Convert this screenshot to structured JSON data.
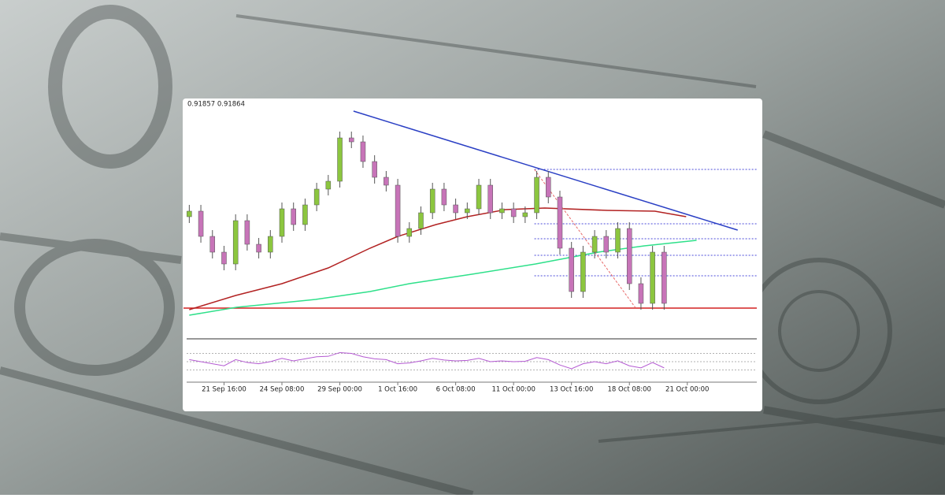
{
  "chart_data": {
    "type": "candlestick",
    "title": "0.91857 0.91864",
    "x": [
      0,
      1,
      2,
      3,
      4,
      5,
      6,
      7,
      8,
      9,
      10,
      11,
      12,
      13,
      14,
      15,
      16,
      17,
      18,
      19,
      20,
      21,
      22,
      23,
      24,
      25,
      26,
      27,
      28,
      29,
      30,
      31,
      32,
      33,
      34,
      35,
      36,
      37,
      38,
      39,
      40,
      41
    ],
    "open": [
      0.9244,
      0.92475,
      0.92315,
      0.92215,
      0.9214,
      0.92415,
      0.92265,
      0.92215,
      0.92315,
      0.9249,
      0.9239,
      0.92515,
      0.92615,
      0.92665,
      0.9294,
      0.92915,
      0.9279,
      0.9269,
      0.9264,
      0.92315,
      0.92365,
      0.92465,
      0.92615,
      0.92515,
      0.92465,
      0.9249,
      0.9264,
      0.92465,
      0.9249,
      0.9244,
      0.92465,
      0.9269,
      0.92565,
      0.9224,
      0.91965,
      0.92215,
      0.92315,
      0.92215,
      0.92365,
      0.92015,
      0.9189,
      0.92215
    ],
    "high": [
      0.92515,
      0.92515,
      0.92355,
      0.92255,
      0.92455,
      0.92455,
      0.92305,
      0.92355,
      0.9253,
      0.9253,
      0.92555,
      0.92655,
      0.92705,
      0.9298,
      0.9298,
      0.92955,
      0.9283,
      0.9273,
      0.9268,
      0.92405,
      0.92505,
      0.92655,
      0.92655,
      0.92555,
      0.9253,
      0.9268,
      0.9268,
      0.9253,
      0.9253,
      0.92505,
      0.9273,
      0.9273,
      0.92605,
      0.9228,
      0.92255,
      0.92355,
      0.92355,
      0.92405,
      0.92405,
      0.92055,
      0.92255,
      0.92255
    ],
    "low": [
      0.924,
      0.92275,
      0.92175,
      0.921,
      0.921,
      0.92225,
      0.92175,
      0.92175,
      0.92275,
      0.9235,
      0.9235,
      0.92475,
      0.92575,
      0.92625,
      0.92875,
      0.9275,
      0.9265,
      0.926,
      0.92275,
      0.92275,
      0.92325,
      0.92425,
      0.92475,
      0.92425,
      0.92425,
      0.9245,
      0.92425,
      0.92425,
      0.924,
      0.924,
      0.92425,
      0.92525,
      0.922,
      0.91925,
      0.91925,
      0.92175,
      0.92175,
      0.92175,
      0.91975,
      0.9185,
      0.9185,
      0.9185
    ],
    "close": [
      0.92475,
      0.92315,
      0.92215,
      0.9214,
      0.92415,
      0.92265,
      0.92215,
      0.92315,
      0.9249,
      0.9239,
      0.92515,
      0.92615,
      0.92665,
      0.9294,
      0.92915,
      0.9279,
      0.9269,
      0.9264,
      0.92315,
      0.92365,
      0.92465,
      0.92615,
      0.92515,
      0.92465,
      0.9249,
      0.9264,
      0.92465,
      0.9249,
      0.9244,
      0.92465,
      0.9269,
      0.92565,
      0.9224,
      0.91965,
      0.92215,
      0.92315,
      0.92215,
      0.92365,
      0.92015,
      0.9189,
      0.92215,
      0.9189
    ],
    "up_color": "#8cc63f",
    "down_color": "#c774b8",
    "xlim": [
      -0.5,
      49
    ],
    "ylim": [
      0.9169,
      0.9314
    ],
    "xticks": [
      {
        "value": 3,
        "label": "21 Sep 16:00"
      },
      {
        "value": 8,
        "label": "24 Sep 08:00"
      },
      {
        "value": 13,
        "label": "29 Sep 00:00"
      },
      {
        "value": 18,
        "label": "1 Oct 16:00"
      },
      {
        "value": 23,
        "label": "6 Oct 08:00"
      },
      {
        "value": 28,
        "label": "11 Oct 00:00"
      },
      {
        "value": 33,
        "label": "13 Oct 16:00"
      },
      {
        "value": 38,
        "label": "18 Oct 08:00"
      },
      {
        "value": 43,
        "label": "21 Oct 00:00"
      }
    ],
    "lines": [
      {
        "color": "#b22222",
        "style": "solid",
        "x": [
          0,
          4,
          8,
          12,
          15.6,
          18,
          21.3,
          24,
          27.3,
          30.7,
          36.1,
          40.2,
          42.9
        ],
        "values": [
          0.9185,
          0.9194,
          0.92015,
          0.92115,
          0.9224,
          0.92315,
          0.9239,
          0.9244,
          0.92485,
          0.92495,
          0.9248,
          0.92475,
          0.9244
        ]
      },
      {
        "color": "#2ee08a",
        "style": "solid",
        "x": [
          0,
          4.07,
          10.9,
          15.6,
          19,
          24.4,
          29.9,
          35.3,
          39.3,
          43.8
        ],
        "values": [
          0.91815,
          0.91865,
          0.91915,
          0.91965,
          0.92015,
          0.92075,
          0.9214,
          0.92215,
          0.92255,
          0.9229
        ]
      },
      {
        "color": "#2a3fc4",
        "style": "solid",
        "x": [
          14.18,
          47.35
        ],
        "values": [
          0.9311,
          0.92355
        ]
      },
      {
        "color": "#e86a6a",
        "style": "dashed",
        "x": [
          29.8,
          38.5
        ],
        "values": [
          0.9274,
          0.91865
        ]
      }
    ],
    "hlines": [
      {
        "value": 0.9186,
        "color": "#d42020"
      }
    ],
    "levels": {
      "color": "#4a4ad8",
      "from": 29.8,
      "values": [
        0.9274,
        0.92395,
        0.923,
        0.92195,
        0.92065
      ]
    },
    "rsi": {
      "color": "#b45ad2",
      "ylim": [
        10,
        90
      ],
      "levels": [
        70,
        50,
        30
      ],
      "values": [
        55,
        50,
        45,
        40,
        55,
        48,
        45,
        50,
        58,
        52,
        57,
        62,
        63,
        72,
        70,
        62,
        57,
        55,
        45,
        47,
        52,
        58,
        54,
        52,
        53,
        58,
        50,
        52,
        50,
        51,
        60,
        55,
        42,
        33,
        45,
        50,
        45,
        52,
        40,
        35,
        48,
        35
      ]
    }
  }
}
